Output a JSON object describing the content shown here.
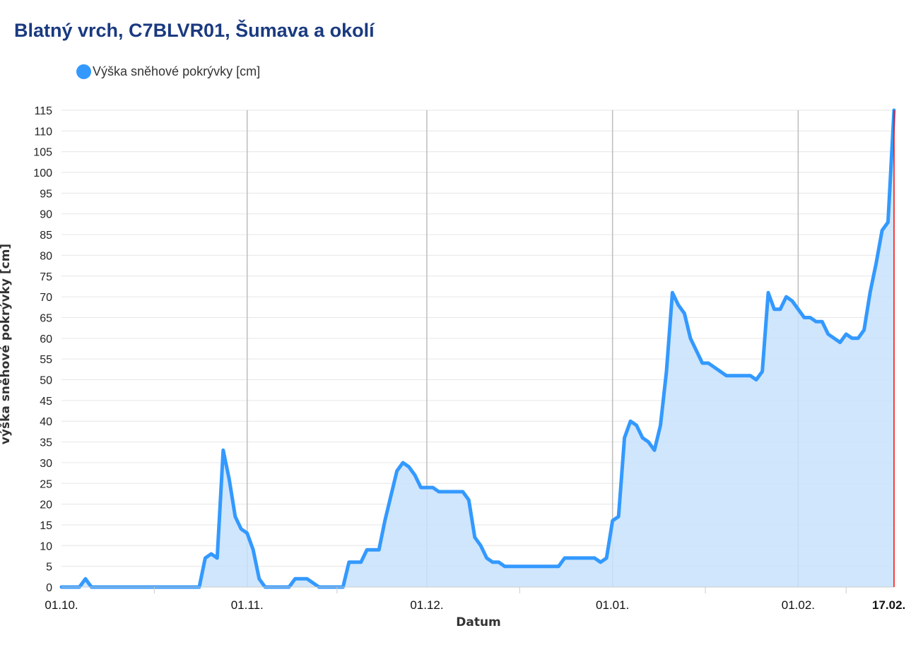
{
  "page": {
    "title": "Blatný vrch, C7BLVR01, Šumava a okolí"
  },
  "chart_data": {
    "type": "area",
    "title": "Blatný vrch, C7BLVR01, Šumava a okolí",
    "xlabel": "Datum",
    "ylabel": "výška sněhové pokrývky [cm]",
    "ylim": [
      0,
      115
    ],
    "yticks": [
      0,
      5,
      10,
      15,
      20,
      25,
      30,
      35,
      40,
      45,
      50,
      55,
      60,
      65,
      70,
      75,
      80,
      85,
      90,
      95,
      100,
      105,
      110,
      115
    ],
    "xticks": [
      {
        "label": "01.10.",
        "day": 0
      },
      {
        "label": "01.11.",
        "day": 31
      },
      {
        "label": "01.12.",
        "day": 61
      },
      {
        "label": "01.01.",
        "day": 92
      },
      {
        "label": "01.02.",
        "day": 123
      },
      {
        "label": "17.02.",
        "day": 139,
        "highlight": true
      }
    ],
    "x_range_days": [
      0,
      139
    ],
    "grid": true,
    "legend_position": "top-left",
    "series": [
      {
        "name": "Výška sněhové pokrývky [cm]",
        "color": "#3399ff",
        "fill": "#c8e2fb",
        "points": [
          [
            0,
            0
          ],
          [
            3,
            0
          ],
          [
            4,
            2
          ],
          [
            5,
            0
          ],
          [
            23,
            0
          ],
          [
            24,
            7
          ],
          [
            25,
            8
          ],
          [
            26,
            7
          ],
          [
            27,
            33
          ],
          [
            28,
            26
          ],
          [
            29,
            17
          ],
          [
            30,
            14
          ],
          [
            31,
            13
          ],
          [
            32,
            9
          ],
          [
            33,
            2
          ],
          [
            34,
            0
          ],
          [
            38,
            0
          ],
          [
            39,
            2
          ],
          [
            41,
            2
          ],
          [
            43,
            0
          ],
          [
            47,
            0
          ],
          [
            48,
            6
          ],
          [
            50,
            6
          ],
          [
            51,
            9
          ],
          [
            53,
            9
          ],
          [
            54,
            16
          ],
          [
            56,
            28
          ],
          [
            57,
            30
          ],
          [
            58,
            29
          ],
          [
            59,
            27
          ],
          [
            60,
            24
          ],
          [
            62,
            24
          ],
          [
            63,
            23
          ],
          [
            67,
            23
          ],
          [
            68,
            21
          ],
          [
            69,
            12
          ],
          [
            70,
            10
          ],
          [
            71,
            7
          ],
          [
            72,
            6
          ],
          [
            73,
            6
          ],
          [
            74,
            5
          ],
          [
            83,
            5
          ],
          [
            84,
            7
          ],
          [
            89,
            7
          ],
          [
            90,
            6
          ],
          [
            91,
            7
          ],
          [
            92,
            16
          ],
          [
            93,
            17
          ],
          [
            94,
            36
          ],
          [
            95,
            40
          ],
          [
            96,
            39
          ],
          [
            97,
            36
          ],
          [
            98,
            35
          ],
          [
            99,
            33
          ],
          [
            100,
            39
          ],
          [
            101,
            52
          ],
          [
            102,
            71
          ],
          [
            103,
            68
          ],
          [
            104,
            66
          ],
          [
            105,
            60
          ],
          [
            107,
            54
          ],
          [
            108,
            54
          ],
          [
            111,
            51
          ],
          [
            115,
            51
          ],
          [
            116,
            50
          ],
          [
            117,
            52
          ],
          [
            118,
            71
          ],
          [
            119,
            67
          ],
          [
            120,
            67
          ],
          [
            121,
            70
          ],
          [
            122,
            69
          ],
          [
            124,
            65
          ],
          [
            125,
            65
          ],
          [
            126,
            64
          ],
          [
            127,
            64
          ],
          [
            128,
            61
          ],
          [
            130,
            59
          ],
          [
            131,
            61
          ],
          [
            132,
            60
          ],
          [
            133,
            60
          ],
          [
            134,
            62
          ],
          [
            135,
            71
          ],
          [
            136,
            78
          ],
          [
            137,
            86
          ],
          [
            138,
            88
          ],
          [
            139,
            116
          ]
        ]
      }
    ]
  }
}
